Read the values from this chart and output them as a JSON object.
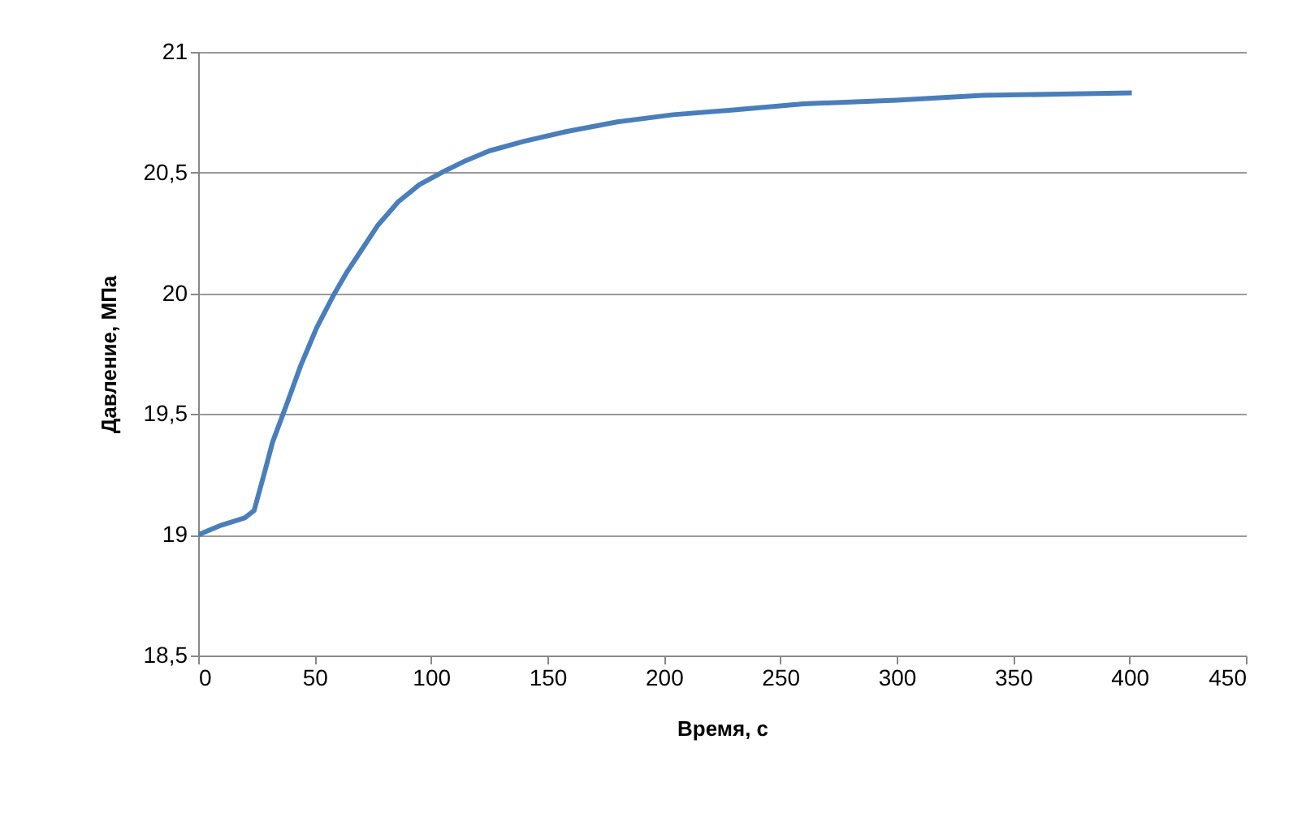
{
  "chart_data": {
    "type": "line",
    "xlabel": "Время, с",
    "ylabel": "Давление, МПа",
    "series": [
      {
        "color": "#4a7ebb",
        "x": [
          0,
          10,
          20,
          24,
          28,
          32,
          38,
          44,
          51,
          58,
          64,
          69.5,
          77,
          86,
          95,
          104.5,
          115,
          125,
          140,
          158,
          180,
          204,
          230,
          260,
          300,
          337,
          370,
          401
        ],
        "values": [
          19.0,
          19.04,
          19.07,
          19.1,
          19.24,
          19.385,
          19.54,
          19.7,
          19.86,
          19.99,
          20.09,
          20.17,
          20.28,
          20.38,
          20.45,
          20.5,
          20.55,
          20.59,
          20.63,
          20.67,
          20.71,
          20.74,
          20.76,
          20.785,
          20.8,
          20.82,
          20.825,
          20.83
        ]
      }
    ],
    "xlim": [
      0,
      450
    ],
    "xticks": [
      0,
      50,
      100,
      150,
      200,
      250,
      300,
      350,
      400,
      450
    ],
    "ylim": [
      18.5,
      21
    ],
    "yticks": [
      {
        "value": 18.5,
        "label": "18,5"
      },
      19,
      {
        "value": 19.5,
        "label": "19,5"
      },
      20,
      {
        "value": 20.5,
        "label": "20,5"
      },
      21
    ],
    "grid": "y",
    "marker": "none",
    "line_style": "solid"
  }
}
